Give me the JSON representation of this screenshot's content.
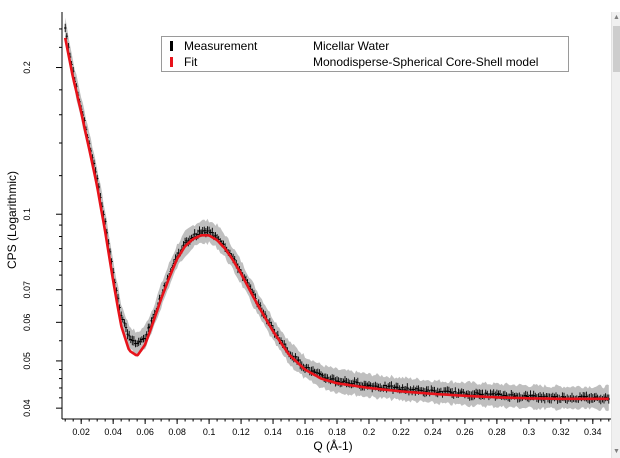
{
  "chart_data": {
    "type": "scatter",
    "title": "",
    "xlabel": "Q (Å-1)",
    "ylabel": "CPS (Logarithmic)",
    "xlim": [
      0.008,
      0.352
    ],
    "ylim": [
      0.038,
      0.26
    ],
    "y_scale": "log",
    "grid": false,
    "legend_position": "top-center",
    "x_ticks": [
      0.02,
      0.04,
      0.06,
      0.08,
      0.1,
      0.12,
      0.14,
      0.16,
      0.18,
      0.2,
      0.22,
      0.24,
      0.26,
      0.28,
      0.3,
      0.32,
      0.34
    ],
    "x_tick_labels": [
      "0.02",
      "0.04",
      "0.06",
      "0.08",
      "0.1",
      "0.12",
      "0.14",
      "0.16",
      "0.18",
      "0.2",
      "0.22",
      "0.24",
      "0.26",
      "0.28",
      "0.3",
      "0.32",
      "0.34"
    ],
    "y_ticks": [
      0.04,
      0.05,
      0.06,
      0.07,
      0.1,
      0.2
    ],
    "y_tick_labels": [
      "0.04",
      "0.05",
      "0.06",
      "0.07",
      "0.1",
      "0.2"
    ],
    "series": [
      {
        "name": "Measurement",
        "description": "Micellar Water",
        "color": "#000000",
        "error_band_color": "#b4b4b4",
        "x": [
          0.01,
          0.015,
          0.02,
          0.025,
          0.03,
          0.035,
          0.04,
          0.045,
          0.05,
          0.055,
          0.06,
          0.065,
          0.07,
          0.075,
          0.08,
          0.085,
          0.09,
          0.095,
          0.1,
          0.105,
          0.11,
          0.115,
          0.12,
          0.13,
          0.14,
          0.15,
          0.16,
          0.17,
          0.18,
          0.2,
          0.22,
          0.24,
          0.26,
          0.28,
          0.3,
          0.32,
          0.35
        ],
        "y": [
          0.24,
          0.195,
          0.165,
          0.14,
          0.118,
          0.096,
          0.076,
          0.062,
          0.056,
          0.054,
          0.056,
          0.061,
          0.068,
          0.075,
          0.082,
          0.087,
          0.09,
          0.092,
          0.092,
          0.09,
          0.086,
          0.081,
          0.076,
          0.066,
          0.058,
          0.052,
          0.0485,
          0.0465,
          0.0455,
          0.0445,
          0.0438,
          0.0432,
          0.0428,
          0.0425,
          0.0422,
          0.042,
          0.042
        ]
      },
      {
        "name": "Fit",
        "description": "Monodisperse-Spherical Core-Shell model",
        "color": "#e8131b",
        "x": [
          0.01,
          0.015,
          0.02,
          0.025,
          0.03,
          0.035,
          0.04,
          0.045,
          0.05,
          0.055,
          0.06,
          0.065,
          0.07,
          0.075,
          0.08,
          0.085,
          0.09,
          0.095,
          0.1,
          0.105,
          0.11,
          0.115,
          0.12,
          0.13,
          0.14,
          0.15,
          0.16,
          0.17,
          0.18,
          0.2,
          0.22,
          0.24,
          0.26,
          0.28,
          0.3,
          0.32,
          0.35
        ],
        "y": [
          0.23,
          0.19,
          0.162,
          0.136,
          0.114,
          0.092,
          0.073,
          0.059,
          0.0525,
          0.0512,
          0.054,
          0.06,
          0.067,
          0.074,
          0.081,
          0.086,
          0.089,
          0.0905,
          0.0905,
          0.0885,
          0.085,
          0.0805,
          0.0755,
          0.0655,
          0.0575,
          0.0515,
          0.048,
          0.046,
          0.045,
          0.044,
          0.0433,
          0.0428,
          0.0424,
          0.0421,
          0.0419,
          0.0418,
          0.0418
        ]
      }
    ]
  }
}
